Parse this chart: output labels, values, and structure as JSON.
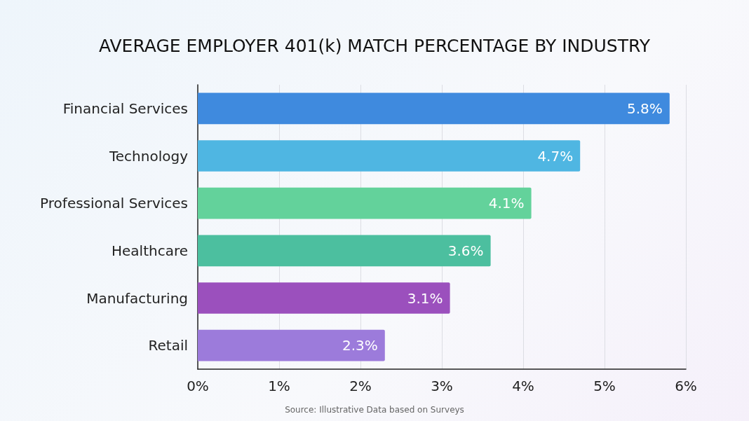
{
  "chart_data": {
    "type": "bar",
    "orientation": "horizontal",
    "title": "AVERAGE EMPLOYER 401(k) MATCH PERCENTAGE BY INDUSTRY",
    "categories": [
      "Financial Services",
      "Technology",
      "Professional Services",
      "Healthcare",
      "Manufacturing",
      "Retail"
    ],
    "values": [
      5.8,
      4.7,
      4.1,
      3.6,
      3.1,
      2.3
    ],
    "colors": [
      "#3f8ade",
      "#4fb6e2",
      "#63d29b",
      "#4cbf9f",
      "#9b50bd",
      "#9c7bdb"
    ],
    "value_labels": [
      "5.8%",
      "4.7%",
      "4.1%",
      "3.6%",
      "3.1%",
      "2.3%"
    ],
    "xlim": [
      0,
      6
    ],
    "xticks": [
      {
        "value": 0,
        "label": "0%"
      },
      {
        "value": 1,
        "label": "1%"
      },
      {
        "value": 2,
        "label": "2%"
      },
      {
        "value": 3,
        "label": "3%"
      },
      {
        "value": 4,
        "label": "4%"
      },
      {
        "value": 5,
        "label": "5%"
      },
      {
        "value": 6,
        "label": "6%"
      }
    ],
    "grid": "x",
    "annotations": [
      "Source: Illustrative Data based on Surveys"
    ]
  }
}
